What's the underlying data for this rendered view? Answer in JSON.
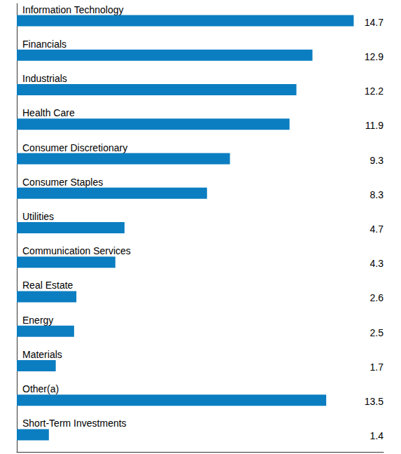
{
  "chart_data": {
    "type": "bar",
    "orientation": "horizontal",
    "categories": [
      "Information Technology",
      "Financials",
      "Industrials",
      "Health Care",
      "Consumer Discretionary",
      "Consumer Staples",
      "Utilities",
      "Communication Services",
      "Real Estate",
      "Energy",
      "Materials",
      "Other(a)",
      "Short-Term Investments"
    ],
    "values": [
      14.7,
      12.9,
      12.2,
      11.9,
      9.3,
      8.3,
      4.7,
      4.3,
      2.6,
      2.5,
      1.7,
      13.5,
      1.4
    ],
    "color": "#0b7ec1",
    "xlim": [
      0,
      16
    ],
    "grid": false,
    "data_labels": true,
    "tick_labels": "y"
  }
}
